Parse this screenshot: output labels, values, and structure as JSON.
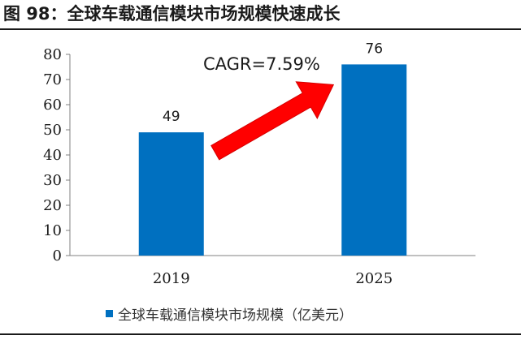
{
  "title": "图 98：全球车载通信模块市场规模快速成长",
  "colors": {
    "bar": "#0070C0",
    "arrow": "#FF0000",
    "axis": "#808080",
    "text": "#1a1a1a"
  },
  "annotation": "CAGR=7.59%",
  "chart_data": {
    "type": "bar",
    "categories": [
      "2019",
      "2025"
    ],
    "series": [
      {
        "name": "全球车载通信模块市场规模（亿美元）",
        "values": [
          49,
          76
        ]
      }
    ],
    "data_labels": [
      "49",
      "76"
    ],
    "ylim": [
      0,
      80
    ],
    "yticks": [
      0,
      10,
      20,
      30,
      40,
      50,
      60,
      70,
      80
    ],
    "ytick_labels": [
      "0",
      "10",
      "20",
      "30",
      "40",
      "50",
      "60",
      "70",
      "80"
    ],
    "grid": false,
    "legend_position": "bottom",
    "xlabel": "",
    "ylabel": ""
  }
}
